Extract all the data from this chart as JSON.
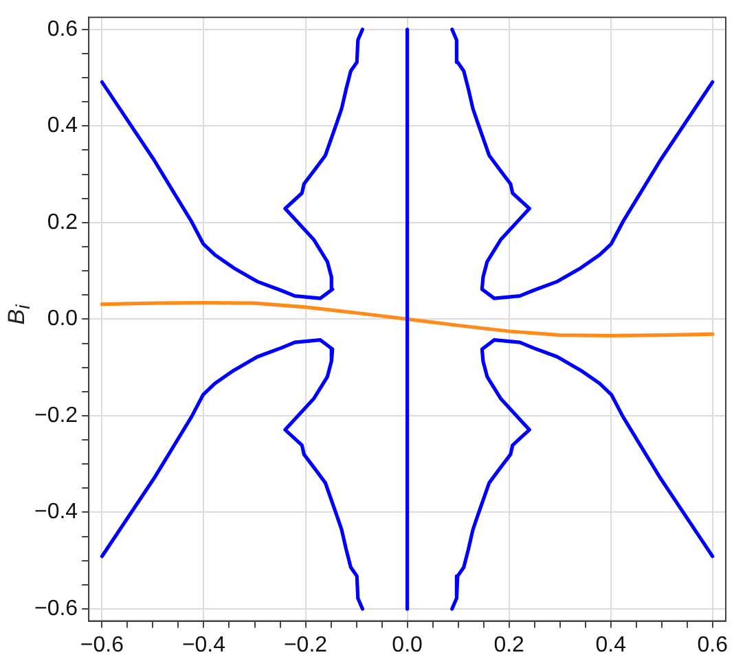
{
  "chart_data": {
    "type": "line",
    "ylabel": "B$_{i}$",
    "xlim": [
      -0.626,
      0.626
    ],
    "ylim": [
      -0.625,
      0.625
    ],
    "xticks": [
      {
        "value": -0.6,
        "label": "−0.6"
      },
      {
        "value": -0.55,
        "label": null
      },
      {
        "value": -0.5,
        "label": null
      },
      {
        "value": -0.45,
        "label": null
      },
      {
        "value": -0.4,
        "label": "−0.4"
      },
      {
        "value": -0.35,
        "label": null
      },
      {
        "value": -0.3,
        "label": null
      },
      {
        "value": -0.25,
        "label": null
      },
      {
        "value": -0.2,
        "label": "−0.2"
      },
      {
        "value": -0.15,
        "label": null
      },
      {
        "value": -0.1,
        "label": null
      },
      {
        "value": -0.05,
        "label": null
      },
      {
        "value": 0,
        "label": "0.0"
      },
      {
        "value": 0.05,
        "label": null
      },
      {
        "value": 0.1,
        "label": null
      },
      {
        "value": 0.15,
        "label": null
      },
      {
        "value": 0.2,
        "label": "0.2"
      },
      {
        "value": 0.25,
        "label": null
      },
      {
        "value": 0.3,
        "label": null
      },
      {
        "value": 0.35,
        "label": null
      },
      {
        "value": 0.4,
        "label": "0.4"
      },
      {
        "value": 0.45,
        "label": null
      },
      {
        "value": 0.5,
        "label": null
      },
      {
        "value": 0.55,
        "label": null
      },
      {
        "value": 0.6,
        "label": "0.6"
      }
    ],
    "yticks": [
      {
        "value": -0.6,
        "label": "−0.6"
      },
      {
        "value": -0.55,
        "label": null
      },
      {
        "value": -0.5,
        "label": null
      },
      {
        "value": -0.45,
        "label": null
      },
      {
        "value": -0.4,
        "label": "−0.4"
      },
      {
        "value": -0.35,
        "label": null
      },
      {
        "value": -0.3,
        "label": null
      },
      {
        "value": -0.25,
        "label": null
      },
      {
        "value": -0.2,
        "label": "−0.2"
      },
      {
        "value": -0.15,
        "label": null
      },
      {
        "value": -0.1,
        "label": null
      },
      {
        "value": -0.05,
        "label": null
      },
      {
        "value": 0,
        "label": "0.0"
      },
      {
        "value": 0.05,
        "label": null
      },
      {
        "value": 0.1,
        "label": null
      },
      {
        "value": 0.15,
        "label": null
      },
      {
        "value": 0.2,
        "label": "0.2"
      },
      {
        "value": 0.25,
        "label": null
      },
      {
        "value": 0.3,
        "label": null
      },
      {
        "value": 0.35,
        "label": null
      },
      {
        "value": 0.4,
        "label": "0.4"
      },
      {
        "value": 0.45,
        "label": null
      },
      {
        "value": 0.5,
        "label": null
      },
      {
        "value": 0.55,
        "label": null
      },
      {
        "value": 0.6,
        "label": "0.6"
      }
    ],
    "grid": true,
    "legend": false,
    "series": [
      {
        "color": "#0000ff",
        "x": [
          -0.6,
          -0.498,
          -0.424,
          -0.401,
          -0.378,
          -0.341,
          -0.295,
          -0.249,
          -0.221,
          -0.171,
          -0.147,
          -0.149,
          -0.157,
          -0.184,
          -0.24,
          -0.207,
          -0.203,
          -0.18,
          -0.161,
          -0.147,
          -0.138,
          -0.129,
          -0.12,
          -0.111,
          -0.099,
          -0.097,
          -0.088
        ],
        "values": [
          0.491,
          0.33,
          0.202,
          0.156,
          0.133,
          0.106,
          0.078,
          0.06,
          0.048,
          0.043,
          0.062,
          0.087,
          0.119,
          0.165,
          0.229,
          0.261,
          0.28,
          0.312,
          0.339,
          0.381,
          0.408,
          0.436,
          0.477,
          0.514,
          0.532,
          0.578,
          0.6
        ]
      },
      {
        "color": "#0000ff",
        "x": [
          0.6,
          0.498,
          0.424,
          0.401,
          0.378,
          0.341,
          0.295,
          0.249,
          0.221,
          0.171,
          0.147,
          0.149,
          0.157,
          0.184,
          0.24,
          0.207,
          0.203,
          0.18,
          0.161,
          0.147,
          0.138,
          0.129,
          0.12,
          0.111,
          0.099,
          0.097,
          0.088
        ],
        "values": [
          0.491,
          0.33,
          0.202,
          0.156,
          0.133,
          0.106,
          0.078,
          0.06,
          0.048,
          0.043,
          0.062,
          0.087,
          0.119,
          0.165,
          0.229,
          0.261,
          0.28,
          0.312,
          0.339,
          0.381,
          0.408,
          0.436,
          0.477,
          0.514,
          0.532,
          0.578,
          0.6
        ]
      },
      {
        "color": "#0000ff",
        "x": [
          -0.6,
          -0.498,
          -0.424,
          -0.401,
          -0.378,
          -0.341,
          -0.295,
          -0.249,
          -0.221,
          -0.171,
          -0.147,
          -0.149,
          -0.157,
          -0.184,
          -0.24,
          -0.207,
          -0.203,
          -0.18,
          -0.161,
          -0.147,
          -0.138,
          -0.129,
          -0.12,
          -0.111,
          -0.099,
          -0.097,
          -0.088
        ],
        "values": [
          -0.491,
          -0.33,
          -0.202,
          -0.156,
          -0.133,
          -0.106,
          -0.078,
          -0.06,
          -0.048,
          -0.043,
          -0.062,
          -0.087,
          -0.119,
          -0.165,
          -0.229,
          -0.261,
          -0.28,
          -0.312,
          -0.339,
          -0.381,
          -0.408,
          -0.436,
          -0.477,
          -0.514,
          -0.532,
          -0.578,
          -0.6
        ]
      },
      {
        "color": "#0000ff",
        "x": [
          0.6,
          0.498,
          0.424,
          0.401,
          0.378,
          0.341,
          0.295,
          0.249,
          0.221,
          0.171,
          0.147,
          0.149,
          0.157,
          0.184,
          0.24,
          0.207,
          0.203,
          0.18,
          0.161,
          0.147,
          0.138,
          0.129,
          0.12,
          0.111,
          0.099,
          0.097,
          0.088
        ],
        "values": [
          -0.491,
          -0.33,
          -0.202,
          -0.156,
          -0.133,
          -0.106,
          -0.078,
          -0.06,
          -0.048,
          -0.043,
          -0.062,
          -0.087,
          -0.119,
          -0.165,
          -0.229,
          -0.261,
          -0.28,
          -0.312,
          -0.339,
          -0.381,
          -0.408,
          -0.436,
          -0.477,
          -0.514,
          -0.532,
          -0.578,
          -0.6
        ]
      },
      {
        "color": "#0000ff",
        "x": [
          0,
          0
        ],
        "values": [
          -0.6,
          0.6
        ]
      },
      {
        "color": "#ff8c1a",
        "x": [
          -0.6,
          -0.5,
          -0.4,
          -0.3,
          -0.2,
          -0.1,
          0,
          0.1,
          0.2,
          0.3,
          0.4,
          0.5,
          0.6
        ],
        "values": [
          0.031,
          0.033,
          0.034,
          0.033,
          0.025,
          0.013,
          0,
          -0.013,
          -0.025,
          -0.033,
          -0.034,
          -0.033,
          -0.031
        ]
      }
    ]
  }
}
